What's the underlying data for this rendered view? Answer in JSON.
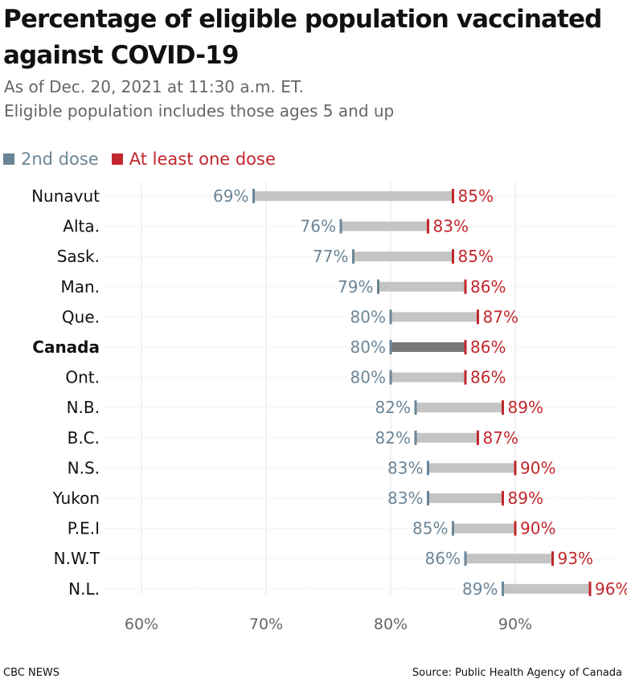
{
  "header": {
    "title": "Percentage of eligible population vaccinated against COVID-19",
    "subtitle1": "As of Dec. 20, 2021 at 11:30 a.m. ET.",
    "subtitle2": "Eligible population includes those ages 5 and up"
  },
  "legend": {
    "second_dose_label": "2nd dose",
    "one_dose_label": "At least one dose"
  },
  "footer": {
    "credit": "CBC NEWS",
    "source": "Source: Public Health Agency of Canada"
  },
  "colors": {
    "second_dose": "#6b8597",
    "one_dose": "#c1272d",
    "bar": "#c4c4c4",
    "bar_highlight": "#777777",
    "grid": "#e6e6e6",
    "axis_label": "#666666"
  },
  "chart_data": {
    "type": "dumbbell",
    "title": "Percentage of eligible population vaccinated against COVID-19",
    "xlabel": "",
    "ylabel": "",
    "xlim": [
      55,
      97
    ],
    "x_ticks": [
      "60%",
      "70%",
      "80%",
      "90%"
    ],
    "x_tick_values": [
      60,
      70,
      80,
      90
    ],
    "grid": "vertical",
    "legend_position": "top-left",
    "categories": [
      "Nunavut",
      "Alta.",
      "Sask.",
      "Man.",
      "Que.",
      "Canada",
      "Ont.",
      "N.B.",
      "B.C.",
      "N.S.",
      "Yukon",
      "P.E.I",
      "N.W.T",
      "N.L."
    ],
    "highlight": "Canada",
    "series": [
      {
        "name": "2nd dose",
        "values": [
          69,
          76,
          77,
          79,
          80,
          80,
          80,
          82,
          82,
          83,
          83,
          85,
          86,
          89
        ]
      },
      {
        "name": "At least one dose",
        "values": [
          85,
          83,
          85,
          86,
          87,
          86,
          86,
          89,
          87,
          90,
          89,
          90,
          93,
          96
        ]
      }
    ]
  }
}
